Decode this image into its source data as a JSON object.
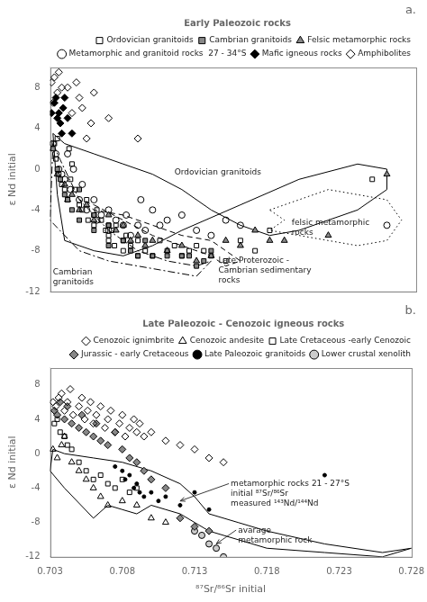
{
  "chart_data": [
    {
      "type": "scatter",
      "title": "a.",
      "ylabel": "ε Nd initial",
      "xlim": [
        0.703,
        0.728
      ],
      "xticks": [
        0.703,
        0.708,
        0.713,
        0.718,
        0.723,
        0.728
      ],
      "ylim": [
        -12.0,
        10.0
      ],
      "yticks": [
        -12,
        -8,
        -4,
        0,
        4,
        8
      ],
      "tick_labels": "y",
      "grid": false,
      "legend": "upper right",
      "legend_title": "Early Paleozoic rocks",
      "series": [
        {
          "name": "Ordovician granitoids",
          "marker": "square_open",
          "color": "#000000",
          "x": [
            0.7033,
            0.7034,
            0.7035,
            0.7036,
            0.7038,
            0.704,
            0.7042,
            0.7043,
            0.7044,
            0.7045,
            0.7047,
            0.705,
            0.7052,
            0.7055,
            0.7056,
            0.706,
            0.706,
            0.7062,
            0.7065,
            0.7068,
            0.707,
            0.707,
            0.707,
            0.7072,
            0.7074,
            0.7075,
            0.708,
            0.708,
            0.7082,
            0.7085,
            0.709,
            0.709,
            0.7095,
            0.71,
            0.7105,
            0.711,
            0.7115,
            0.712,
            0.7125,
            0.713,
            0.7135,
            0.714,
            0.715,
            0.716,
            0.717,
            0.718,
            0.725
          ],
          "y": [
            2.5,
            1.0,
            3.0,
            -0.5,
            -1.5,
            -2.0,
            -3.0,
            2.0,
            -1.0,
            0.5,
            -2.0,
            -3.5,
            -4.0,
            -3.0,
            -5.0,
            -4.5,
            -5.5,
            -4.0,
            -5.0,
            -6.0,
            -5.5,
            -7.0,
            -6.5,
            -6.0,
            -7.5,
            -5.5,
            -7.0,
            -8.0,
            -6.5,
            -7.5,
            -7.0,
            -8.5,
            -8.0,
            -8.5,
            -7.0,
            -8.0,
            -7.5,
            -8.5,
            -8.0,
            -7.5,
            -8.0,
            -8.5,
            -9.0,
            -7.0,
            -8.0,
            -6.0,
            -1.0
          ]
        },
        {
          "name": "Cambrian granitoids",
          "marker": "square",
          "color": "#888888",
          "x": [
            0.7032,
            0.7035,
            0.7037,
            0.704,
            0.7042,
            0.7045,
            0.705,
            0.705,
            0.706,
            0.706,
            0.707,
            0.707,
            0.708,
            0.7085,
            0.709,
            0.7095,
            0.71,
            0.711,
            0.712,
            0.7125,
            0.713,
            0.7135,
            0.714
          ],
          "y": [
            2.0,
            0.0,
            -1.0,
            -2.5,
            -3.0,
            -4.0,
            -5.0,
            -2.0,
            -4.5,
            -6.0,
            -5.5,
            -7.5,
            -7.0,
            -8.0,
            -8.5,
            -7.0,
            -8.5,
            -8.5,
            -8.5,
            -8.5,
            -9.5,
            -9.0,
            -8.0
          ]
        },
        {
          "name": "Felsic metamorphic rocks",
          "marker": "triangle",
          "color": "#888888",
          "x": [
            0.7032,
            0.7035,
            0.704,
            0.7042,
            0.7045,
            0.705,
            0.7055,
            0.706,
            0.707,
            0.7075,
            0.708,
            0.7085,
            0.709,
            0.7095,
            0.71,
            0.711,
            0.712,
            0.713,
            0.714,
            0.715,
            0.716,
            0.717,
            0.718,
            0.719,
            0.722,
            0.726
          ],
          "y": [
            2.0,
            -0.5,
            -1.5,
            -3.0,
            -2.5,
            -4.0,
            -3.5,
            -5.0,
            -4.5,
            -6.0,
            -5.5,
            -7.0,
            -6.5,
            -7.5,
            -7.0,
            -8.0,
            -7.5,
            -9.0,
            -8.5,
            -7.0,
            -7.5,
            -6.0,
            -7.0,
            -7.0,
            -6.5,
            -0.5
          ]
        },
        {
          "name": "Metamorphic and granitoid rocks  27 - 34°S",
          "marker": "circle_open",
          "color": "#000000",
          "x": [
            0.7032,
            0.7034,
            0.7036,
            0.7038,
            0.704,
            0.7042,
            0.7044,
            0.7046,
            0.705,
            0.7052,
            0.7055,
            0.706,
            0.7062,
            0.7065,
            0.707,
            0.707,
            0.7075,
            0.708,
            0.7082,
            0.7085,
            0.709,
            0.7092,
            0.7095,
            0.71,
            0.7105,
            0.711,
            0.712,
            0.713,
            0.714,
            0.715,
            0.716,
            0.726
          ],
          "y": [
            2.5,
            1.5,
            0.0,
            -0.5,
            -1.0,
            1.5,
            -2.0,
            0.0,
            -3.0,
            -1.5,
            -4.0,
            -3.0,
            -5.0,
            -4.5,
            -4.0,
            -6.0,
            -5.0,
            -5.5,
            -4.5,
            -6.5,
            -5.5,
            -3.0,
            -6.0,
            -4.0,
            -5.5,
            -5.0,
            -4.5,
            -6.0,
            -6.5,
            -5.0,
            -5.5,
            -5.5
          ]
        },
        {
          "name": "Mafic igneous rocks",
          "marker": "diamond",
          "color": "#000000",
          "x": [
            0.7031,
            0.7033,
            0.7034,
            0.7035,
            0.7036,
            0.7037,
            0.7038,
            0.7039,
            0.704,
            0.7042,
            0.7045
          ],
          "y": [
            5.5,
            6.5,
            7.0,
            5.0,
            5.5,
            4.5,
            3.5,
            6.0,
            7.0,
            5.0,
            3.5
          ]
        },
        {
          "name": "Amphibolites",
          "marker": "diamond_open",
          "color": "#000000",
          "x": [
            0.7031,
            0.7032,
            0.7033,
            0.7035,
            0.7036,
            0.7038,
            0.7042,
            0.7045,
            0.7048,
            0.705,
            0.7052,
            0.7055,
            0.7058,
            0.706,
            0.707,
            0.709
          ],
          "y": [
            8.5,
            6.5,
            9.0,
            7.5,
            9.5,
            8.0,
            8.0,
            5.5,
            8.5,
            7.0,
            6.0,
            3.0,
            4.5,
            7.5,
            5.0,
            3.0
          ]
        },
        {
          "type": "line",
          "line_style": "solid",
          "color": "#000000",
          "x": [
            0.7032,
            0.704,
            0.706,
            0.708,
            0.71,
            0.712,
            0.714,
            0.716,
            0.718,
            0.72,
            0.722,
            0.724,
            0.726,
            0.726,
            0.724,
            0.72,
            0.716,
            0.712,
            0.71,
            0.708,
            0.706,
            0.705,
            0.704,
            0.7035,
            0.7032
          ],
          "y": [
            3.5,
            2.5,
            1.5,
            0.5,
            -0.5,
            -2.0,
            -4.0,
            -5.5,
            -6.5,
            -6.0,
            -5.0,
            -4.0,
            -2.0,
            0.0,
            0.5,
            -1.0,
            -3.5,
            -6.0,
            -7.5,
            -8.5,
            -8.0,
            -7.5,
            -7.0,
            -2.5,
            3.5
          ]
        },
        {
          "type": "line",
          "line_style": "dashdot",
          "color": "#000000",
          "x": [
            0.7032,
            0.7035,
            0.705,
            0.707,
            0.709,
            0.711,
            0.713,
            0.714,
            0.713,
            0.711,
            0.709,
            0.707,
            0.705,
            0.703,
            0.7032
          ],
          "y": [
            2.5,
            1.5,
            -3.0,
            -6.0,
            -8.0,
            -9.0,
            -9.5,
            -9.0,
            -10.5,
            -10.0,
            -9.5,
            -9.0,
            -8.0,
            -5.0,
            2.5
          ]
        },
        {
          "type": "line",
          "line_style": "dashed",
          "color": "#000000",
          "x": [
            0.706,
            0.708,
            0.71,
            0.712,
            0.714,
            0.715,
            0.716,
            0.715,
            0.714,
            0.712,
            0.71,
            0.708,
            0.706,
            0.705,
            0.706
          ],
          "y": [
            -3.5,
            -5.0,
            -6.5,
            -7.5,
            -8.5,
            -9.5,
            -9.0,
            -8.0,
            -7.0,
            -6.5,
            -5.5,
            -4.5,
            -4.0,
            -3.0,
            -3.5
          ]
        },
        {
          "type": "line",
          "line_style": "dotted",
          "color": "#000000",
          "x": [
            0.718,
            0.72,
            0.722,
            0.724,
            0.726,
            0.727,
            0.726,
            0.724,
            0.722,
            0.72,
            0.718,
            0.719,
            0.718
          ],
          "y": [
            -4.0,
            -3.0,
            -2.0,
            -2.5,
            -3.0,
            -5.0,
            -7.0,
            -7.5,
            -7.0,
            -6.5,
            -6.0,
            -5.0,
            -4.0
          ]
        }
      ],
      "annotations": [
        {
          "text": "Ordovician granitoids",
          "x": 0.7115,
          "y": -0.5
        },
        {
          "text": "felsic metamorphic\nrocks",
          "x": 0.7195,
          "y": -5.5
        },
        {
          "text": "Cambrian\ngranitoids",
          "x": 0.7032,
          "y": -10.3
        },
        {
          "text": "Late Proterozoic -\nCambrian sedimentary\nrocks",
          "x": 0.7145,
          "y": -9.2
        }
      ]
    },
    {
      "type": "scatter",
      "title": "b.",
      "xlabel": "⁸⁷Sr/⁸⁶Sr initial",
      "ylabel": "ε Nd initial",
      "xlim": [
        0.703,
        0.728
      ],
      "xticks": [
        0.703,
        0.708,
        0.713,
        0.718,
        0.723,
        0.728
      ],
      "ylim": [
        -12.0,
        10.0
      ],
      "yticks": [
        -12,
        -8,
        -4,
        0,
        4,
        8
      ],
      "grid": false,
      "legend": "upper right",
      "legend_title": "Late Paleozoic - Cenozoic igneous rocks",
      "series": [
        {
          "name": "Cenozoic ignimbrite",
          "marker": "diamond_open",
          "color": "#000000",
          "x": [
            0.7032,
            0.7034,
            0.7036,
            0.7038,
            0.704,
            0.7042,
            0.7044,
            0.7046,
            0.705,
            0.7052,
            0.7054,
            0.7056,
            0.7058,
            0.706,
            0.7062,
            0.7065,
            0.7068,
            0.707,
            0.7072,
            0.7075,
            0.7078,
            0.708,
            0.7082,
            0.7085,
            0.7088,
            0.709,
            0.7092,
            0.7095,
            0.71,
            0.711,
            0.712,
            0.713,
            0.714,
            0.715
          ],
          "y": [
            6.0,
            5.5,
            6.5,
            7.0,
            5.0,
            6.0,
            7.5,
            4.5,
            5.5,
            6.5,
            4.0,
            5.0,
            6.0,
            3.5,
            4.5,
            5.5,
            3.0,
            4.0,
            5.0,
            2.5,
            3.5,
            4.5,
            2.0,
            3.0,
            4.0,
            2.5,
            3.5,
            2.0,
            2.5,
            1.5,
            1.0,
            0.5,
            -0.5,
            -1.0
          ]
        },
        {
          "name": "Cenozoic andesite",
          "marker": "triangle_open",
          "color": "#000000",
          "x": [
            0.7032,
            0.7035,
            0.7038,
            0.704,
            0.7045,
            0.705,
            0.7055,
            0.706,
            0.7065,
            0.707,
            0.708,
            0.709,
            0.71,
            0.711
          ],
          "y": [
            0.5,
            -0.5,
            1.0,
            2.0,
            -1.0,
            -2.0,
            -3.0,
            -4.0,
            -5.0,
            -6.0,
            -5.5,
            -6.0,
            -7.5,
            -8.0
          ]
        },
        {
          "name": "Late Cretaceous -early Cenozoic",
          "marker": "square_open",
          "color": "#000000",
          "x": [
            0.7033,
            0.7035,
            0.7037,
            0.704,
            0.7042,
            0.7045,
            0.705,
            0.7055,
            0.706,
            0.7065,
            0.707,
            0.7075,
            0.708,
            0.7085,
            0.709
          ],
          "y": [
            3.5,
            4.0,
            2.5,
            2.0,
            1.0,
            0.5,
            -1.0,
            -2.0,
            -3.0,
            -2.5,
            -3.5,
            -4.0,
            -3.0,
            -4.5,
            -4.0
          ]
        },
        {
          "name": "Jurassic - early Cretaceous",
          "marker": "diamond",
          "color": "#888888",
          "x": [
            0.7033,
            0.7035,
            0.7037,
            0.704,
            0.7042,
            0.7045,
            0.705,
            0.7052,
            0.7055,
            0.706,
            0.7062,
            0.7065,
            0.707,
            0.7075,
            0.708,
            0.7085,
            0.709,
            0.7095,
            0.71,
            0.711,
            0.712,
            0.713,
            0.714
          ],
          "y": [
            5.0,
            4.5,
            6.0,
            4.0,
            5.5,
            3.5,
            3.0,
            4.5,
            2.5,
            2.0,
            3.5,
            1.5,
            1.0,
            2.5,
            0.5,
            -0.5,
            -1.0,
            -2.0,
            -3.0,
            -4.0,
            -7.5,
            -8.5,
            -9.0
          ]
        },
        {
          "name": "Late Paleozoic granitoids",
          "marker": "point",
          "color": "#000000",
          "x": [
            0.7075,
            0.708,
            0.7082,
            0.7085,
            0.7088,
            0.709,
            0.7092,
            0.7095,
            0.71,
            0.7105,
            0.711,
            0.712,
            0.713,
            0.714,
            0.722
          ],
          "y": [
            -1.5,
            -2.0,
            -3.0,
            -2.5,
            -4.0,
            -3.5,
            -4.5,
            -5.0,
            -4.5,
            -5.5,
            -5.0,
            -6.0,
            -4.5,
            -6.5,
            -2.5
          ]
        },
        {
          "name": "Lower crustal xenolith",
          "marker": "circle",
          "color": "#cccccc",
          "x": [
            0.713,
            0.7135,
            0.714,
            0.7145,
            0.715
          ],
          "y": [
            -9.0,
            -9.5,
            -10.5,
            -11.0,
            -12.0
          ]
        },
        {
          "type": "line",
          "line_style": "solid",
          "color": "#000000",
          "x": [
            0.7032,
            0.704,
            0.706,
            0.708,
            0.71,
            0.712,
            0.713,
            0.714,
            0.716,
            0.718,
            0.722,
            0.726,
            0.728,
            0.726,
            0.722,
            0.718,
            0.716,
            0.714,
            0.713,
            0.712,
            0.711,
            0.71,
            0.709,
            0.708,
            0.707,
            0.706,
            0.704,
            0.703,
            0.7032
          ],
          "y": [
            0.5,
            0.0,
            -0.5,
            -1.0,
            -2.0,
            -3.5,
            -5.0,
            -7.0,
            -8.0,
            -9.0,
            -10.5,
            -11.5,
            -11.0,
            -12.0,
            -11.5,
            -11.0,
            -10.0,
            -9.0,
            -8.0,
            -7.0,
            -6.5,
            -6.0,
            -7.0,
            -6.5,
            -6.0,
            -7.5,
            -4.0,
            -2.0,
            0.5
          ]
        }
      ],
      "annotations": [
        {
          "text": "metamorphic rocks 21 - 27°S\ninitial ⁸⁷Sr/⁸⁶Sr\nmeasured ¹⁴³Nd/¹⁴⁴Nd",
          "x": 0.7155,
          "y": -3.8,
          "arrow_to": [
            0.712,
            -5.5
          ]
        },
        {
          "text": "avarage\nmetamorphic rock",
          "x": 0.716,
          "y": -9.2,
          "arrow_to": [
            0.7145,
            -10.5
          ]
        }
      ]
    }
  ]
}
